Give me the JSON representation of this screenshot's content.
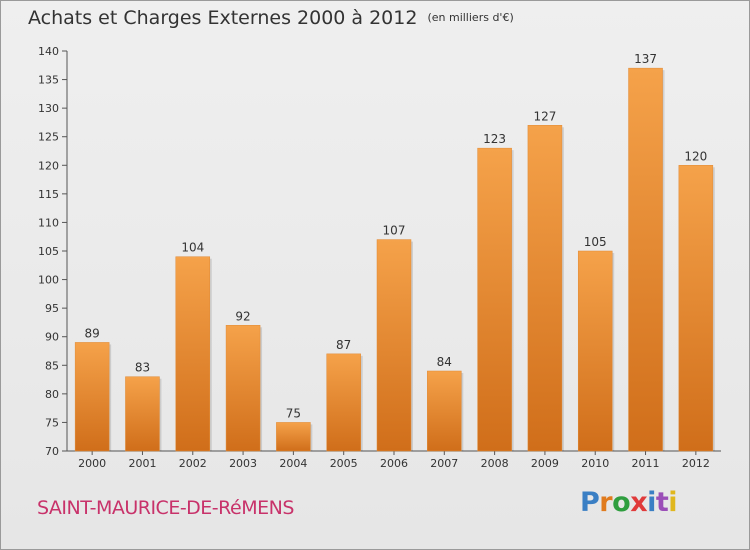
{
  "header": {
    "title": "Achats et Charges Externes 2000 à 2012",
    "unit": "(en milliers d'€)"
  },
  "footer": {
    "town": "SAINT-MAURICE-DE-RéMENS",
    "logo": "Proxiti"
  },
  "colors": {
    "bar_top": "#f5a24a",
    "bar_bottom": "#d06e1a",
    "town_text": "#c8326a"
  },
  "chart_data": {
    "type": "bar",
    "title": "Achats et Charges Externes 2000 à 2012",
    "subtitle": "(en milliers d'€)",
    "xlabel": "",
    "ylabel": "",
    "categories": [
      "2000",
      "2001",
      "2002",
      "2003",
      "2004",
      "2005",
      "2006",
      "2007",
      "2008",
      "2009",
      "2010",
      "2011",
      "2012"
    ],
    "values": [
      89,
      83,
      104,
      92,
      75,
      87,
      107,
      84,
      123,
      127,
      105,
      137,
      120
    ],
    "ylim": [
      70,
      140
    ],
    "yticks": [
      70,
      75,
      80,
      85,
      90,
      95,
      100,
      105,
      110,
      115,
      120,
      125,
      130,
      135,
      140
    ],
    "grid": false,
    "data_labels": true
  }
}
